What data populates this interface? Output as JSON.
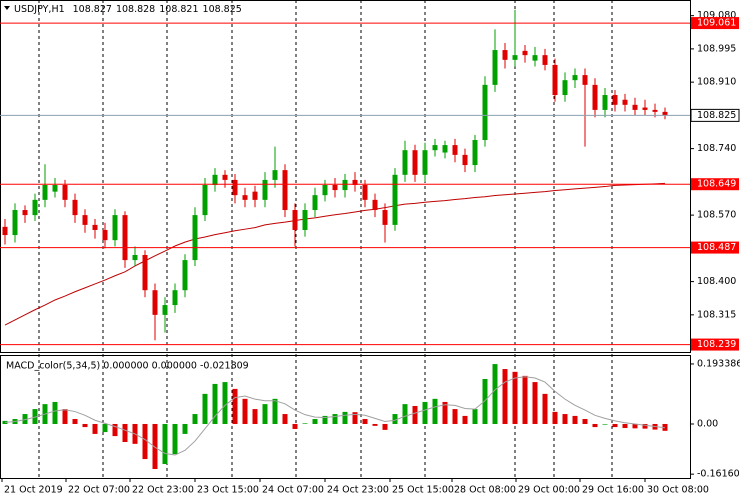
{
  "chart_data": [
    {
      "type": "candlestick",
      "title": "USDJPY,H1",
      "quote": [
        108.827,
        108.828,
        108.821,
        108.825
      ],
      "up_color": "#00a000",
      "down_color": "#e00000",
      "open": [
        108.54,
        108.519,
        108.583,
        108.57,
        108.609,
        108.63,
        108.647,
        108.609,
        108.57,
        108.545,
        108.532,
        108.506,
        108.57,
        108.455,
        108.468,
        108.378,
        108.315,
        108.34,
        108.378,
        108.455,
        108.57,
        108.647,
        108.673,
        108.66,
        108.621,
        108.63,
        108.609,
        108.66,
        108.685,
        108.583,
        108.532,
        108.583,
        108.621,
        108.647,
        108.634,
        108.66,
        108.647,
        108.609,
        108.583,
        108.545,
        108.673,
        108.736,
        108.673,
        108.736,
        108.73,
        108.749,
        108.724,
        108.698,
        108.762,
        108.903,
        108.992,
        108.967,
        108.99,
        108.965,
        108.979,
        108.954,
        108.877,
        108.915,
        108.928,
        108.903,
        108.839,
        108.877,
        108.865,
        108.852,
        108.845,
        108.839,
        108.834
      ],
      "high": [
        108.56,
        108.6,
        108.595,
        108.625,
        108.7,
        108.665,
        108.66,
        108.625,
        108.585,
        108.56,
        108.55,
        108.585,
        108.58,
        108.49,
        108.48,
        108.395,
        108.36,
        108.395,
        108.47,
        108.59,
        108.665,
        108.69,
        108.685,
        108.675,
        108.64,
        108.645,
        108.68,
        108.745,
        108.7,
        108.6,
        108.6,
        108.64,
        108.66,
        108.665,
        108.675,
        108.68,
        108.66,
        108.625,
        108.6,
        108.69,
        108.76,
        108.75,
        108.755,
        108.765,
        108.76,
        108.765,
        108.74,
        108.775,
        108.925,
        109.045,
        109.01,
        109.095,
        109.005,
        109.0,
        108.995,
        108.97,
        108.935,
        108.945,
        108.945,
        108.92,
        108.895,
        108.89,
        108.88,
        108.87,
        108.865,
        108.855,
        108.845
      ],
      "low": [
        108.495,
        108.5,
        108.55,
        108.555,
        108.59,
        108.615,
        108.59,
        108.55,
        108.525,
        108.51,
        108.485,
        108.49,
        108.435,
        108.44,
        108.36,
        108.25,
        108.27,
        108.32,
        108.36,
        108.44,
        108.555,
        108.63,
        108.64,
        108.6,
        108.59,
        108.59,
        108.59,
        108.64,
        108.565,
        108.49,
        108.515,
        108.565,
        108.605,
        108.615,
        108.615,
        108.63,
        108.59,
        108.565,
        108.5,
        108.53,
        108.655,
        108.655,
        108.655,
        108.72,
        108.715,
        108.705,
        108.68,
        108.68,
        108.745,
        108.885,
        108.945,
        108.95,
        108.96,
        108.95,
        108.94,
        108.86,
        108.86,
        108.895,
        108.745,
        108.82,
        108.82,
        108.835,
        108.835,
        108.825,
        108.825,
        108.82,
        108.815
      ],
      "close": [
        108.519,
        108.583,
        108.57,
        108.609,
        108.647,
        108.647,
        108.609,
        108.57,
        108.545,
        108.532,
        108.506,
        108.57,
        108.455,
        108.468,
        108.378,
        108.315,
        108.34,
        108.378,
        108.455,
        108.57,
        108.647,
        108.673,
        108.66,
        108.621,
        108.609,
        108.609,
        108.66,
        108.685,
        108.583,
        108.532,
        108.583,
        108.621,
        108.647,
        108.634,
        108.66,
        108.647,
        108.609,
        108.583,
        108.545,
        108.673,
        108.736,
        108.673,
        108.736,
        108.749,
        108.749,
        108.724,
        108.698,
        108.762,
        108.903,
        108.992,
        108.967,
        108.979,
        108.979,
        108.979,
        108.954,
        108.877,
        108.915,
        108.928,
        108.903,
        108.839,
        108.877,
        108.852,
        108.852,
        108.839,
        108.839,
        108.834,
        108.825
      ],
      "ma": {
        "color": "#c00000",
        "values": [
          108.289,
          108.302,
          108.315,
          108.328,
          108.34,
          108.353,
          108.363,
          108.374,
          108.384,
          108.394,
          108.404,
          108.415,
          108.425,
          108.44,
          108.453,
          108.466,
          108.478,
          108.491,
          108.501,
          108.509,
          108.514,
          108.52,
          108.525,
          108.53,
          108.534,
          108.538,
          108.545,
          108.549,
          108.552,
          108.556,
          108.56,
          108.563,
          108.567,
          108.571,
          108.574,
          108.578,
          108.582,
          108.585,
          108.589,
          108.594,
          108.598,
          108.6,
          108.603,
          108.605,
          108.607,
          108.61,
          108.612,
          108.615,
          108.617,
          108.62,
          108.622,
          108.624,
          108.626,
          108.628,
          108.63,
          108.633,
          108.635,
          108.637,
          108.639,
          108.641,
          108.643,
          108.646,
          108.647,
          108.648,
          108.649,
          108.65,
          108.651
        ]
      },
      "ylim": [
        108.22,
        109.12
      ],
      "yticks": [
        {
          "value": 109.08,
          "label": "109.080"
        },
        108.995,
        {
          "value": 108.91,
          "label": "108.910"
        },
        {
          "value": 108.74,
          "label": "108.740"
        },
        {
          "value": 108.57,
          "label": "108.570"
        },
        {
          "value": 108.4,
          "label": "108.400"
        },
        108.315
      ],
      "levels": [
        {
          "value": 109.061,
          "color": "#ff0000"
        },
        {
          "value": 108.649,
          "color": "#ff0000"
        },
        {
          "value": 108.487,
          "color": "#ff0000"
        },
        {
          "value": 108.239,
          "color": "#ff0000"
        }
      ],
      "last_price": 108.825,
      "x_labels": [
        "21 Oct 2019",
        "22 Oct 07:00",
        "22 Oct 23:00",
        "23 Oct 15:00",
        "24 Oct 07:00",
        "24 Oct 23:00",
        "25 Oct 15:00",
        "28 Oct 08:00",
        "29 Oct 00:00",
        "29 Oct 16:00",
        "30 Oct 08:00"
      ]
    },
    {
      "type": "macd",
      "title": "MACD_color(5,34,5) 0.000000 0.000000 -0.021809",
      "up_color": "#00a000",
      "down_color": "#e00000",
      "signal_color": "#a0a0a0",
      "values": [
        0.01,
        0.016,
        0.032,
        0.048,
        0.064,
        0.071,
        0.048,
        0.016,
        -0.01,
        -0.032,
        -0.026,
        -0.039,
        -0.058,
        -0.064,
        -0.113,
        -0.145,
        -0.129,
        -0.097,
        -0.032,
        0.032,
        0.097,
        0.129,
        0.135,
        0.113,
        0.081,
        0.048,
        0.064,
        0.081,
        0.032,
        -0.016,
        0.002,
        0.016,
        0.026,
        0.032,
        0.039,
        0.038,
        0.016,
        -0.006,
        -0.019,
        0.032,
        0.064,
        0.058,
        0.071,
        0.081,
        0.071,
        0.048,
        0.026,
        0.048,
        0.145,
        0.193,
        0.177,
        0.168,
        0.155,
        0.135,
        0.097,
        0.039,
        0.032,
        0.026,
        0.016,
        -0.01,
        -0.002,
        -0.01,
        -0.013,
        -0.014,
        -0.015,
        -0.018,
        -0.022
      ],
      "signal": [
        0.005,
        0.008,
        0.014,
        0.022,
        0.032,
        0.042,
        0.046,
        0.04,
        0.028,
        0.012,
        0.002,
        -0.008,
        -0.02,
        -0.032,
        -0.05,
        -0.075,
        -0.095,
        -0.1,
        -0.085,
        -0.055,
        -0.015,
        0.025,
        0.06,
        0.085,
        0.09,
        0.08,
        0.075,
        0.075,
        0.065,
        0.045,
        0.03,
        0.022,
        0.021,
        0.024,
        0.028,
        0.031,
        0.028,
        0.018,
        0.008,
        0.012,
        0.025,
        0.035,
        0.045,
        0.055,
        0.062,
        0.06,
        0.05,
        0.048,
        0.075,
        0.11,
        0.135,
        0.148,
        0.152,
        0.148,
        0.135,
        0.105,
        0.08,
        0.06,
        0.045,
        0.028,
        0.018,
        0.01,
        0.004,
        0.0,
        -0.004,
        -0.008,
        -0.012
      ],
      "ylim": [
        -0.174,
        0.219
      ],
      "yticks": [
        0.193386,
        {
          "value": 0,
          "label": "0.00"
        },
        -0.161609
      ]
    }
  ]
}
